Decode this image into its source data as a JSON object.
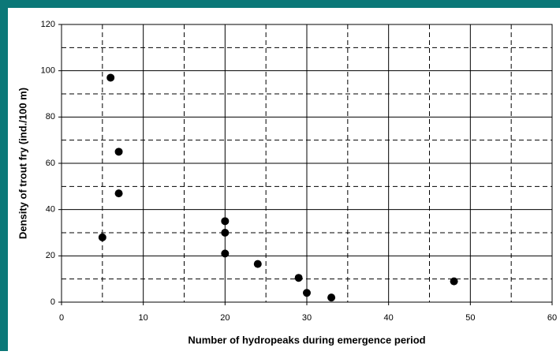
{
  "chart_data": {
    "type": "scatter",
    "x_label": "Number of hydropeaks during emergence period",
    "y_label": "Density of trout fry (ind./100 m)",
    "series": [
      {
        "color": "#000000",
        "x": [
          5,
          6,
          7,
          7,
          20,
          20,
          20,
          24,
          29,
          30,
          33,
          48
        ],
        "values": [
          28,
          97,
          65,
          47,
          35,
          30,
          21,
          16.5,
          10.5,
          4,
          2,
          9
        ]
      }
    ],
    "xlim": [
      0,
      60
    ],
    "xticks": [
      0,
      10,
      20,
      30,
      40,
      50,
      60
    ],
    "ylim": [
      0,
      120
    ],
    "yticks": [
      0,
      20,
      40,
      60,
      80,
      100,
      120
    ],
    "xminorticks": [
      5,
      15,
      25,
      35,
      45,
      55
    ],
    "yminorticks": [
      10,
      30,
      50,
      70,
      90,
      110
    ],
    "grid": true
  }
}
